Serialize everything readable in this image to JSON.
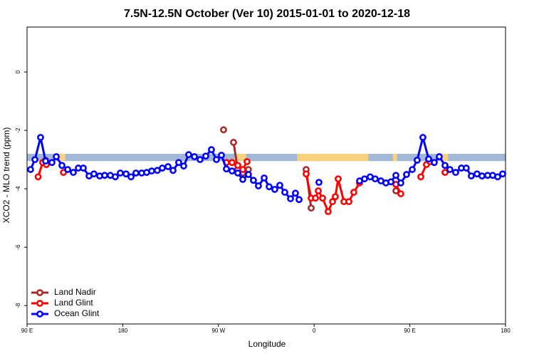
{
  "chart_data": {
    "type": "line",
    "title": "7.5N-12.5N October (Ver 10)   2015-01-01 to 2020-12-18",
    "xlabel": "Longitude",
    "ylabel": "XCO2 - MLO trend (ppm)",
    "xlim": [
      90,
      540
    ],
    "ylim": [
      1.54,
      -8.63
    ],
    "xticks": [
      {
        "value": 90,
        "label": "90 E"
      },
      180,
      {
        "value": 270,
        "label": "90 W"
      },
      {
        "value": 360,
        "label": "0"
      },
      {
        "value": 450,
        "label": "90 E"
      },
      {
        "value": 540,
        "label": "180"
      }
    ],
    "yticks": [
      0,
      -2,
      -4,
      -6,
      -8
    ],
    "legend": "bottom-left",
    "band": {
      "color": "#a3b8d6",
      "land_color": "#f6d27e",
      "ylim": [
        -2.8,
        -3.05
      ],
      "land": [
        [
          120,
          126
        ],
        [
          285,
          296
        ],
        [
          344,
          411
        ],
        [
          434,
          438
        ],
        [
          480,
          486
        ]
      ]
    },
    "series": [
      {
        "name": "Land Nadir",
        "color": "#a52a2a",
        "x": [
          107.4,
          null,
          274.8,
          null,
          284.2,
          288.2,
          292.9,
          298.2,
          null,
          352.5,
          357.2,
          null,
          436.9
        ],
        "values": [
          -3.02,
          null,
          -1.98,
          null,
          -2.41,
          -3.34,
          -3.46,
          -3.34,
          null,
          -3.34,
          -4.66,
          null,
          -4.07
        ]
      },
      {
        "name": "Land Glint",
        "color": "#ff0000",
        "x": [
          100.4,
          104.7,
          108.1,
          null,
          124.2,
          null,
          277.5,
          282.8,
          288.2,
          292.9,
          296.9,
          null,
          352.5,
          357.2,
          361.2,
          363.9,
          367.9,
          373.2,
          377.3,
          379.9,
          382.6,
          388.0,
          392.7,
          397.3,
          402.7,
          null,
          436.9,
          441.5,
          null,
          460.3,
          465.6,
          469.0,
          null,
          483.1
        ],
        "values": [
          -3.59,
          -3.1,
          -3.17,
          null,
          -3.44,
          null,
          -3.1,
          -3.1,
          -3.2,
          -3.34,
          -3.07,
          null,
          -3.49,
          -4.32,
          -4.32,
          -4.07,
          -4.32,
          -4.78,
          -4.44,
          -4.27,
          -3.66,
          -4.44,
          -4.44,
          -4.12,
          -3.8,
          null,
          -3.85,
          -4.17,
          null,
          -3.59,
          -3.17,
          -3.07,
          null,
          -3.44
        ]
      },
      {
        "name": "Ocean Glint",
        "color": "#0000ff",
        "x": [
          93.3,
          97.4,
          102.7,
          107.4,
          113.4,
          117.5,
          122.8,
          128.2,
          133.5,
          138.2,
          142.9,
          148.3,
          152.9,
          158.3,
          163.0,
          168.3,
          173.0,
          177.7,
          183.1,
          187.8,
          192.4,
          197.8,
          202.5,
          207.2,
          212.5,
          217.2,
          222.6,
          227.3,
          232.6,
          237.3,
          242.0,
          247.4,
          252.7,
          258.1,
          263.4,
          268.1,
          272.8,
          277.5,
          282.8,
          288.2,
          292.9,
          298.2,
          302.9,
          307.6,
          313.0,
          317.7,
          323.0,
          327.7,
          332.4,
          337.8,
          342.4,
          345.8,
          null,
          364.5,
          null,
          402.7,
          407.4,
          412.7,
          417.4,
          422.8,
          427.5,
          432.2,
          436.9,
          441.5,
          446.9,
          452.3,
          456.9,
          462.3,
          467.7,
          473.0,
          477.7,
          483.1,
          487.7,
          493.1,
          498.5,
          503.1,
          507.8,
          513.2,
          517.9,
          523.2,
          527.9,
          532.6,
          537.3
        ],
        "values": [
          -3.34,
          -3.0,
          -2.24,
          -3.05,
          -3.1,
          -2.9,
          -3.2,
          -3.34,
          -3.44,
          -3.29,
          -3.29,
          -3.56,
          -3.49,
          -3.56,
          -3.54,
          -3.54,
          -3.59,
          -3.46,
          -3.49,
          -3.59,
          -3.46,
          -3.46,
          -3.44,
          -3.39,
          -3.37,
          -3.29,
          -3.24,
          -3.37,
          -3.1,
          -3.22,
          -2.83,
          -2.9,
          -3.0,
          -2.88,
          -2.66,
          -3.0,
          -2.85,
          -3.32,
          -3.39,
          -3.46,
          -3.68,
          -3.51,
          -3.71,
          -3.9,
          -3.63,
          -3.93,
          -4.02,
          -3.88,
          -4.12,
          -4.34,
          -4.15,
          -4.37,
          null,
          -3.78,
          null,
          -3.73,
          -3.66,
          -3.59,
          -3.66,
          -3.73,
          -3.8,
          -3.76,
          -3.54,
          -3.8,
          -3.51,
          -3.34,
          -3.02,
          -2.24,
          -2.98,
          -3.1,
          -2.9,
          -3.2,
          -3.34,
          -3.44,
          -3.29,
          -3.29,
          -3.56,
          -3.49,
          -3.56,
          -3.54,
          -3.54,
          -3.59,
          -3.49
        ]
      }
    ]
  }
}
